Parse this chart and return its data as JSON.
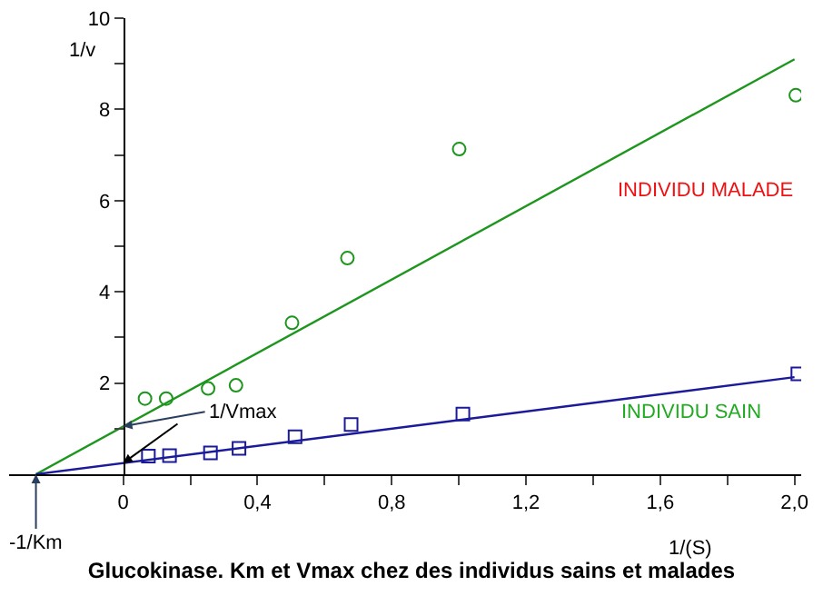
{
  "chart_data": {
    "type": "scatter",
    "title": "Glucokinase. Km et Vmax chez des individus sains et malades",
    "xlabel": "1/(S)",
    "ylabel": "1/v",
    "xlim": [
      -0.34,
      2.02
    ],
    "ylim": [
      0,
      10
    ],
    "xticks": [
      0,
      {
        "value": 0.2,
        "label": null
      },
      {
        "value": 0.4,
        "label": "0,4"
      },
      {
        "value": 0.6,
        "label": null
      },
      {
        "value": 0.8,
        "label": "0,8"
      },
      {
        "value": 1.0,
        "label": null
      },
      {
        "value": 1.2,
        "label": "1,2"
      },
      {
        "value": 1.4,
        "label": null
      },
      {
        "value": 1.6,
        "label": "1,6"
      },
      {
        "value": 1.8,
        "label": null
      },
      {
        "value": 2.0,
        "label": "2,0"
      }
    ],
    "yticks": [
      {
        "value": 1,
        "label": null
      },
      2,
      {
        "value": 3,
        "label": null
      },
      4,
      {
        "value": 5,
        "label": null
      },
      6,
      {
        "value": 7,
        "label": null
      },
      8,
      {
        "value": 9,
        "label": null
      },
      10
    ],
    "series": [
      {
        "marker": "circle",
        "color": "#1e961e",
        "x": [
          0.065,
          0.128,
          0.253,
          0.336,
          0.503,
          0.668,
          1.001,
          2.004
        ],
        "values": [
          1.66,
          1.66,
          1.88,
          1.95,
          3.32,
          4.74,
          7.13,
          8.31
        ]
      },
      {
        "type": "line",
        "color": "#1e961e",
        "x": [
          -0.26,
          2.0
        ],
        "values": [
          0,
          9.1
        ]
      },
      {
        "marker": "square",
        "color": "#1a1a9a",
        "x": [
          0.075,
          0.138,
          0.26,
          0.345,
          0.512,
          0.679,
          1.012,
          2.01
        ],
        "values": [
          0.4,
          0.41,
          0.47,
          0.57,
          0.82,
          1.09,
          1.32,
          2.2
        ]
      },
      {
        "type": "line",
        "color": "#1a1a9a",
        "x": [
          -0.26,
          2.0
        ],
        "values": [
          0,
          2.13
        ]
      }
    ],
    "annotations": [
      "INDIVIDU MALADE",
      "INDIVIDU SAIN",
      {
        "text": "1/Vmax",
        "x": 0,
        "y": 1.05
      },
      {
        "text": "-1/Km",
        "x": -0.26,
        "y": 0
      }
    ]
  }
}
